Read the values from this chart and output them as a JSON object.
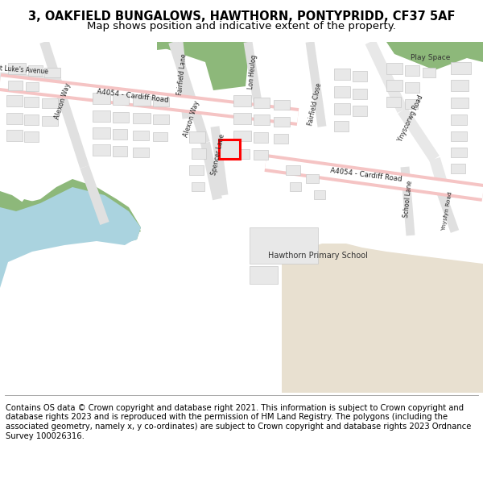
{
  "title_line1": "3, OAKFIELD BUNGALOWS, HAWTHORN, PONTYPRIDD, CF37 5AF",
  "title_line2": "Map shows position and indicative extent of the property.",
  "footer_text": "Contains OS data © Crown copyright and database right 2021. This information is subject to Crown copyright and database rights 2023 and is reproduced with the permission of HM Land Registry. The polygons (including the associated geometry, namely x, y co-ordinates) are subject to Crown copyright and database rights 2023 Ordnance Survey 100026316.",
  "map_bg": "#f5f3f0",
  "road_pink": "#f5c4c4",
  "road_white": "#ffffff",
  "building_fill": "#e8e8e8",
  "building_edge": "#c8c8c8",
  "green_color": "#8db87a",
  "blue_color": "#aad3df",
  "dark_green": "#5a8a5a",
  "tan_color": "#e8e0d0",
  "highlight_color": "#ff0000",
  "fig_width": 6.0,
  "fig_height": 6.25,
  "title_fontsize": 10.5,
  "subtitle_fontsize": 9.5,
  "footer_fontsize": 7.2
}
